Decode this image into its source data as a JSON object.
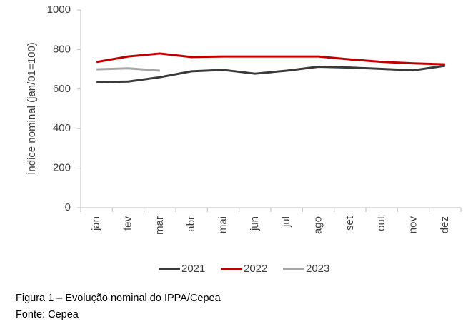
{
  "chart_data": {
    "type": "line",
    "y_label": "Índice nominal (jan/01=100)",
    "categories": [
      "jan",
      "fev",
      "mar",
      "abr",
      "mai",
      "jun",
      "jul",
      "ago",
      "set",
      "out",
      "nov",
      "dez"
    ],
    "series": [
      {
        "name": "2021",
        "color": "#3a3a3a",
        "values": [
          635,
          638,
          660,
          690,
          697,
          678,
          693,
          713,
          709,
          702,
          695,
          718
        ]
      },
      {
        "name": "2022",
        "color": "#c00000",
        "values": [
          737,
          765,
          780,
          762,
          765,
          765,
          765,
          765,
          750,
          738,
          730,
          725
        ]
      },
      {
        "name": "2023",
        "color": "#a6a6a6",
        "values": [
          700,
          705,
          693,
          null,
          null,
          null,
          null,
          null,
          null,
          null,
          null,
          null
        ]
      }
    ],
    "ylim": [
      0,
      1000
    ],
    "yticks": [
      0,
      200,
      400,
      600,
      800,
      1000
    ],
    "grid": false,
    "legend": "bottom"
  },
  "figure_caption": "Figura 1 – Evolução nominal do IPPA/Cepea",
  "source": "Fonte: Cepea"
}
